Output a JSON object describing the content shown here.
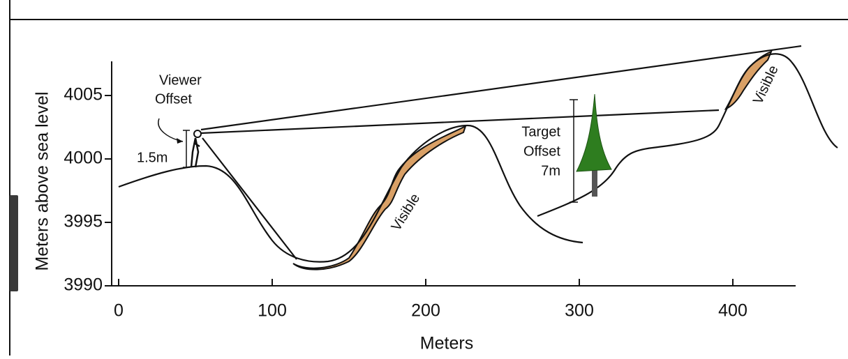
{
  "axes": {
    "x_label": "Meters",
    "y_label": "Meters above sea level",
    "xlim": [
      0,
      441
    ],
    "xticks": [
      0,
      100,
      200,
      300,
      400
    ],
    "ylim": [
      3990,
      4008
    ],
    "yticks": [
      3990,
      3995,
      4000,
      4005
    ]
  },
  "annotations": {
    "viewer_offset": [
      "Viewer",
      "Offset"
    ],
    "viewer_height": "1.5m",
    "target_offset": [
      "Target",
      "Offset",
      "7m"
    ],
    "visible_1": "Visible",
    "visible_2": "Visible"
  }
}
